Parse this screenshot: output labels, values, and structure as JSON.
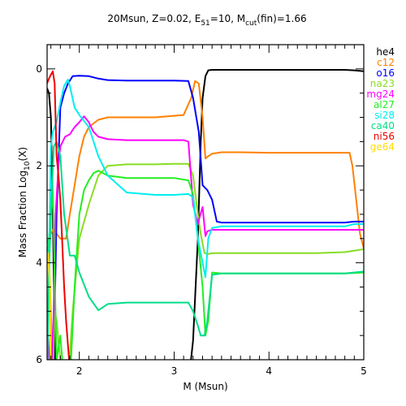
{
  "chart_data": {
    "type": "line",
    "title": {
      "prefix": "20Msun, Z=0.02, E",
      "e_sub": "51",
      "middle": "=10, M",
      "m_sub": "cut",
      "suffix": "(fin)=1.66"
    },
    "xlabel": "M (Msun)",
    "ylabel": {
      "prefix": "Mass Fraction Log",
      "sub": "10",
      "suffix": "(X)"
    },
    "xlim": [
      1.66,
      5.0
    ],
    "ylim": [
      -6,
      0.5
    ],
    "x_ticks": [
      {
        "value": 2,
        "label": "2"
      },
      {
        "value": 3,
        "label": "3"
      },
      {
        "value": 4,
        "label": "4"
      },
      {
        "value": 5,
        "label": "5"
      }
    ],
    "y_ticks": [
      {
        "value": 0,
        "label": "0"
      },
      {
        "value": -2,
        "label": "2"
      },
      {
        "value": -4,
        "label": "4"
      },
      {
        "value": -6,
        "label": "6"
      }
    ],
    "legend_position": "outside-right",
    "series": [
      {
        "name": "he4",
        "color": "#000000",
        "x": [
          1.66,
          1.68,
          1.7,
          1.72,
          1.75,
          3.15,
          3.2,
          3.25,
          3.28,
          3.3,
          3.33,
          3.36,
          3.4,
          3.5,
          4.0,
          4.5,
          4.8,
          4.9,
          5.0
        ],
        "y": [
          -0.4,
          -0.5,
          -1.0,
          -3.0,
          -6.5,
          -6.5,
          -5.6,
          -3.5,
          -1.5,
          -0.6,
          -0.15,
          -0.03,
          -0.02,
          -0.02,
          -0.02,
          -0.02,
          -0.02,
          -0.03,
          -0.05
        ]
      },
      {
        "name": "c12",
        "color": "#ff8000",
        "x": [
          1.66,
          1.7,
          1.73,
          1.76,
          1.8,
          1.86,
          1.9,
          1.95,
          2.0,
          2.05,
          2.1,
          2.2,
          2.3,
          2.5,
          2.8,
          3.1,
          3.18,
          3.22,
          3.26,
          3.3,
          3.33,
          3.36,
          3.4,
          3.5,
          3.7,
          4.0,
          4.5,
          4.85,
          4.88,
          4.92,
          4.96,
          5.0
        ],
        "y": [
          -3.6,
          -3.4,
          -3.3,
          -3.4,
          -3.5,
          -3.5,
          -3.0,
          -2.4,
          -1.8,
          -1.4,
          -1.2,
          -1.05,
          -1.0,
          -1.0,
          -1.0,
          -0.95,
          -0.6,
          -0.25,
          -0.3,
          -1.0,
          -1.85,
          -1.8,
          -1.75,
          -1.72,
          -1.72,
          -1.73,
          -1.73,
          -1.73,
          -2.0,
          -2.7,
          -3.4,
          -3.7
        ]
      },
      {
        "name": "o16",
        "color": "#0000ff",
        "x": [
          1.66,
          1.7,
          1.73,
          1.76,
          1.8,
          1.84,
          1.88,
          1.93,
          2.0,
          2.1,
          2.2,
          2.3,
          2.5,
          3.0,
          3.15,
          3.2,
          3.26,
          3.3,
          3.35,
          3.4,
          3.45,
          3.5,
          3.6,
          4.0,
          4.5,
          4.8,
          4.9,
          5.0
        ],
        "y": [
          -6.5,
          -6.3,
          -6.0,
          -3.0,
          -0.8,
          -0.5,
          -0.3,
          -0.15,
          -0.14,
          -0.15,
          -0.2,
          -0.23,
          -0.24,
          -0.24,
          -0.25,
          -0.6,
          -1.3,
          -2.4,
          -2.5,
          -2.7,
          -3.15,
          -3.17,
          -3.17,
          -3.17,
          -3.17,
          -3.17,
          -3.15,
          -3.15
        ]
      },
      {
        "name": "na23",
        "color": "#88dd22",
        "x": [
          1.66,
          1.68,
          1.7,
          1.72,
          1.74,
          1.76,
          1.8,
          1.84,
          1.88,
          1.93,
          2.0,
          2.1,
          2.2,
          2.3,
          2.5,
          2.8,
          3.0,
          3.15,
          3.2,
          3.25,
          3.28,
          3.32,
          3.36,
          3.4,
          3.5,
          4.0,
          4.5,
          4.8,
          5.0
        ],
        "y": [
          -3.8,
          -3.9,
          -5.0,
          -6.5,
          -5.0,
          -5.2,
          -6.0,
          -6.5,
          -6.5,
          -5.0,
          -3.5,
          -2.8,
          -2.2,
          -2.0,
          -1.97,
          -1.97,
          -1.96,
          -1.96,
          -2.2,
          -3.0,
          -3.4,
          -3.8,
          -3.82,
          -3.8,
          -3.8,
          -3.8,
          -3.8,
          -3.78,
          -3.72
        ]
      },
      {
        "name": "mg24",
        "color": "#ff00ff",
        "x": [
          1.66,
          1.7,
          1.73,
          1.75,
          1.78,
          1.8,
          1.85,
          1.9,
          1.95,
          2.0,
          2.05,
          2.1,
          2.15,
          2.2,
          2.3,
          2.5,
          2.8,
          3.1,
          3.15,
          3.2,
          3.25,
          3.27,
          3.3,
          3.33,
          3.35,
          3.4,
          3.5,
          4.0,
          4.5,
          4.8,
          5.0
        ],
        "y": [
          -5.2,
          -6.5,
          -5.0,
          -3.0,
          -2.0,
          -1.6,
          -1.4,
          -1.35,
          -1.2,
          -1.1,
          -0.98,
          -1.1,
          -1.3,
          -1.4,
          -1.45,
          -1.47,
          -1.47,
          -1.47,
          -1.5,
          -2.8,
          -3.2,
          -3.05,
          -2.85,
          -3.45,
          -3.35,
          -3.32,
          -3.32,
          -3.32,
          -3.32,
          -3.32,
          -3.32
        ]
      },
      {
        "name": "al27",
        "color": "#22ee22",
        "x": [
          1.66,
          1.68,
          1.72,
          1.76,
          1.8,
          1.84,
          1.9,
          1.95,
          2.0,
          2.05,
          2.1,
          2.15,
          2.2,
          2.3,
          2.5,
          2.8,
          3.0,
          3.15,
          3.2,
          3.25,
          3.3,
          3.33,
          3.36,
          3.4,
          3.5,
          4.0,
          4.5,
          4.8,
          5.0
        ],
        "y": [
          -4.0,
          -3.5,
          -2.5,
          -6.0,
          -5.5,
          -6.5,
          -6.5,
          -4.5,
          -3.0,
          -2.5,
          -2.3,
          -2.15,
          -2.1,
          -2.2,
          -2.25,
          -2.25,
          -2.25,
          -2.3,
          -2.6,
          -3.5,
          -4.5,
          -5.5,
          -5.2,
          -4.2,
          -4.22,
          -4.22,
          -4.22,
          -4.22,
          -4.2
        ]
      },
      {
        "name": "si28",
        "color": "#00eeee",
        "x": [
          1.66,
          1.68,
          1.7,
          1.72,
          1.74,
          1.76,
          1.8,
          1.84,
          1.88,
          1.9,
          1.95,
          2.0,
          2.1,
          2.2,
          2.3,
          2.5,
          2.8,
          3.0,
          3.15,
          3.2,
          3.25,
          3.28,
          3.3,
          3.33,
          3.36,
          3.4,
          3.5,
          4.0,
          4.5,
          4.8,
          4.9,
          5.0
        ],
        "y": [
          -6.5,
          -4.0,
          -1.6,
          -1.3,
          -1.2,
          -1.1,
          -0.7,
          -0.35,
          -0.22,
          -0.35,
          -0.8,
          -0.95,
          -1.2,
          -1.8,
          -2.2,
          -2.55,
          -2.6,
          -2.6,
          -2.58,
          -2.65,
          -3.5,
          -3.8,
          -4.0,
          -4.3,
          -3.5,
          -3.28,
          -3.25,
          -3.25,
          -3.25,
          -3.25,
          -3.2,
          -3.2
        ]
      },
      {
        "name": "ca40",
        "color": "#00dd88",
        "x": [
          1.66,
          1.68,
          1.7,
          1.73,
          1.76,
          1.8,
          1.84,
          1.9,
          1.95,
          2.0,
          2.1,
          2.2,
          2.3,
          2.5,
          2.8,
          3.0,
          3.15,
          3.2,
          3.25,
          3.28,
          3.32,
          3.35,
          3.4,
          3.5,
          4.0,
          4.5,
          4.8,
          5.0
        ],
        "y": [
          -6.5,
          -4.2,
          -3.0,
          -1.6,
          -1.5,
          -1.8,
          -3.0,
          -3.85,
          -3.85,
          -4.2,
          -4.7,
          -4.98,
          -4.85,
          -4.82,
          -4.82,
          -4.82,
          -4.82,
          -5.0,
          -5.3,
          -5.5,
          -5.5,
          -5.2,
          -4.25,
          -4.22,
          -4.22,
          -4.22,
          -4.22,
          -4.18
        ]
      },
      {
        "name": "ni56",
        "color": "#ee0000",
        "x": [
          1.66,
          1.68,
          1.7,
          1.72,
          1.74,
          1.76,
          1.78,
          1.8,
          1.82,
          1.84,
          1.86,
          1.88,
          1.9,
          1.93
        ],
        "y": [
          -0.3,
          -0.2,
          -0.12,
          -0.05,
          -0.3,
          -1.8,
          -2.2,
          -2.7,
          -3.6,
          -4.5,
          -5.2,
          -5.7,
          -6.2,
          -6.6
        ]
      },
      {
        "name": "ge64",
        "color": "#ffdd00",
        "x": [
          1.66,
          1.67,
          1.69,
          1.7
        ],
        "y": [
          -4.0,
          -3.8,
          -4.5,
          -6.5
        ]
      }
    ]
  }
}
